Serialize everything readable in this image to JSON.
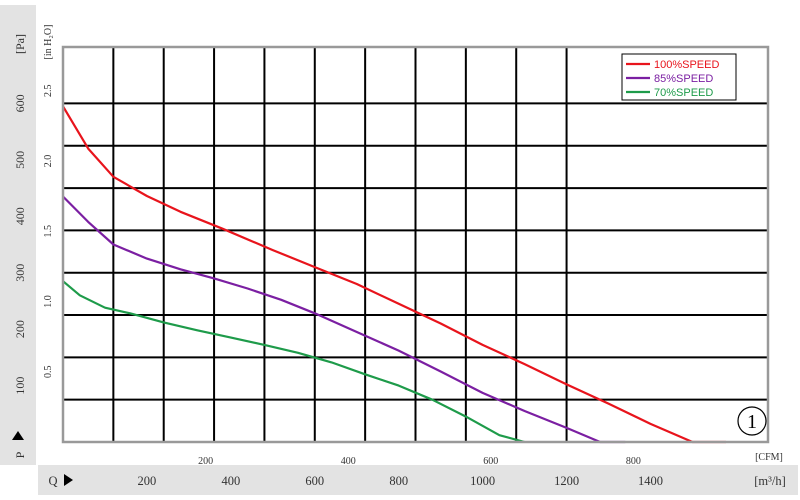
{
  "chart_data": {
    "type": "line",
    "badge": "①",
    "axes": {
      "y_left": {
        "unit_label": "[Pa]",
        "axis_symbol": "P",
        "ticks": [
          100,
          200,
          300,
          400,
          500,
          600
        ],
        "range": [
          0,
          700
        ]
      },
      "y_inner": {
        "unit_label": "[in H₂O]",
        "tick_labels": [
          "0.5",
          "1.0",
          "1.5",
          "2.0",
          "2.5"
        ],
        "tick_values_pa": [
          124.5,
          249,
          373.5,
          498,
          622.5
        ]
      },
      "x_bottom": {
        "unit_label": "[m³/h]",
        "axis_symbol": "Q",
        "ticks": [
          200,
          400,
          600,
          800,
          1000,
          1200,
          1400
        ],
        "range": [
          0,
          1680
        ]
      },
      "x_inner": {
        "unit_label": "[CFM]",
        "ticks": [
          200,
          400,
          600,
          800
        ],
        "cfm_to_m3h": 1.699
      }
    },
    "grid": true,
    "legend_position": "top-right",
    "colors": {
      "frame": "#999999",
      "grid": "#000000",
      "bottom_band": "#e3e3e3",
      "text_dark": "#333333"
    },
    "series": [
      {
        "name": "100%SPEED",
        "color": "#e8141c",
        "x": [
          0,
          60,
          120,
          200,
          280,
          380,
          500,
          600,
          700,
          800,
          900,
          1000,
          1100,
          1200,
          1300,
          1400,
          1500,
          1580
        ],
        "y": [
          595,
          520,
          470,
          436,
          408,
          378,
          340,
          310,
          280,
          245,
          210,
          172,
          138,
          102,
          68,
          32,
          0,
          0
        ]
      },
      {
        "name": "85%SPEED",
        "color": "#7b1fa2",
        "x": [
          0,
          60,
          120,
          200,
          280,
          360,
          440,
          520,
          600,
          700,
          800,
          900,
          1000,
          1100,
          1200,
          1280,
          1340
        ],
        "y": [
          435,
          390,
          350,
          325,
          306,
          290,
          272,
          252,
          228,
          195,
          162,
          125,
          87,
          55,
          25,
          0,
          0
        ]
      },
      {
        "name": "70%SPEED",
        "color": "#1e9b4a",
        "x": [
          0,
          40,
          100,
          160,
          240,
          320,
          400,
          480,
          560,
          640,
          720,
          800,
          880,
          960,
          1040,
          1100
        ],
        "y": [
          285,
          260,
          238,
          228,
          212,
          198,
          185,
          172,
          158,
          141,
          120,
          100,
          75,
          45,
          12,
          0
        ]
      }
    ]
  }
}
